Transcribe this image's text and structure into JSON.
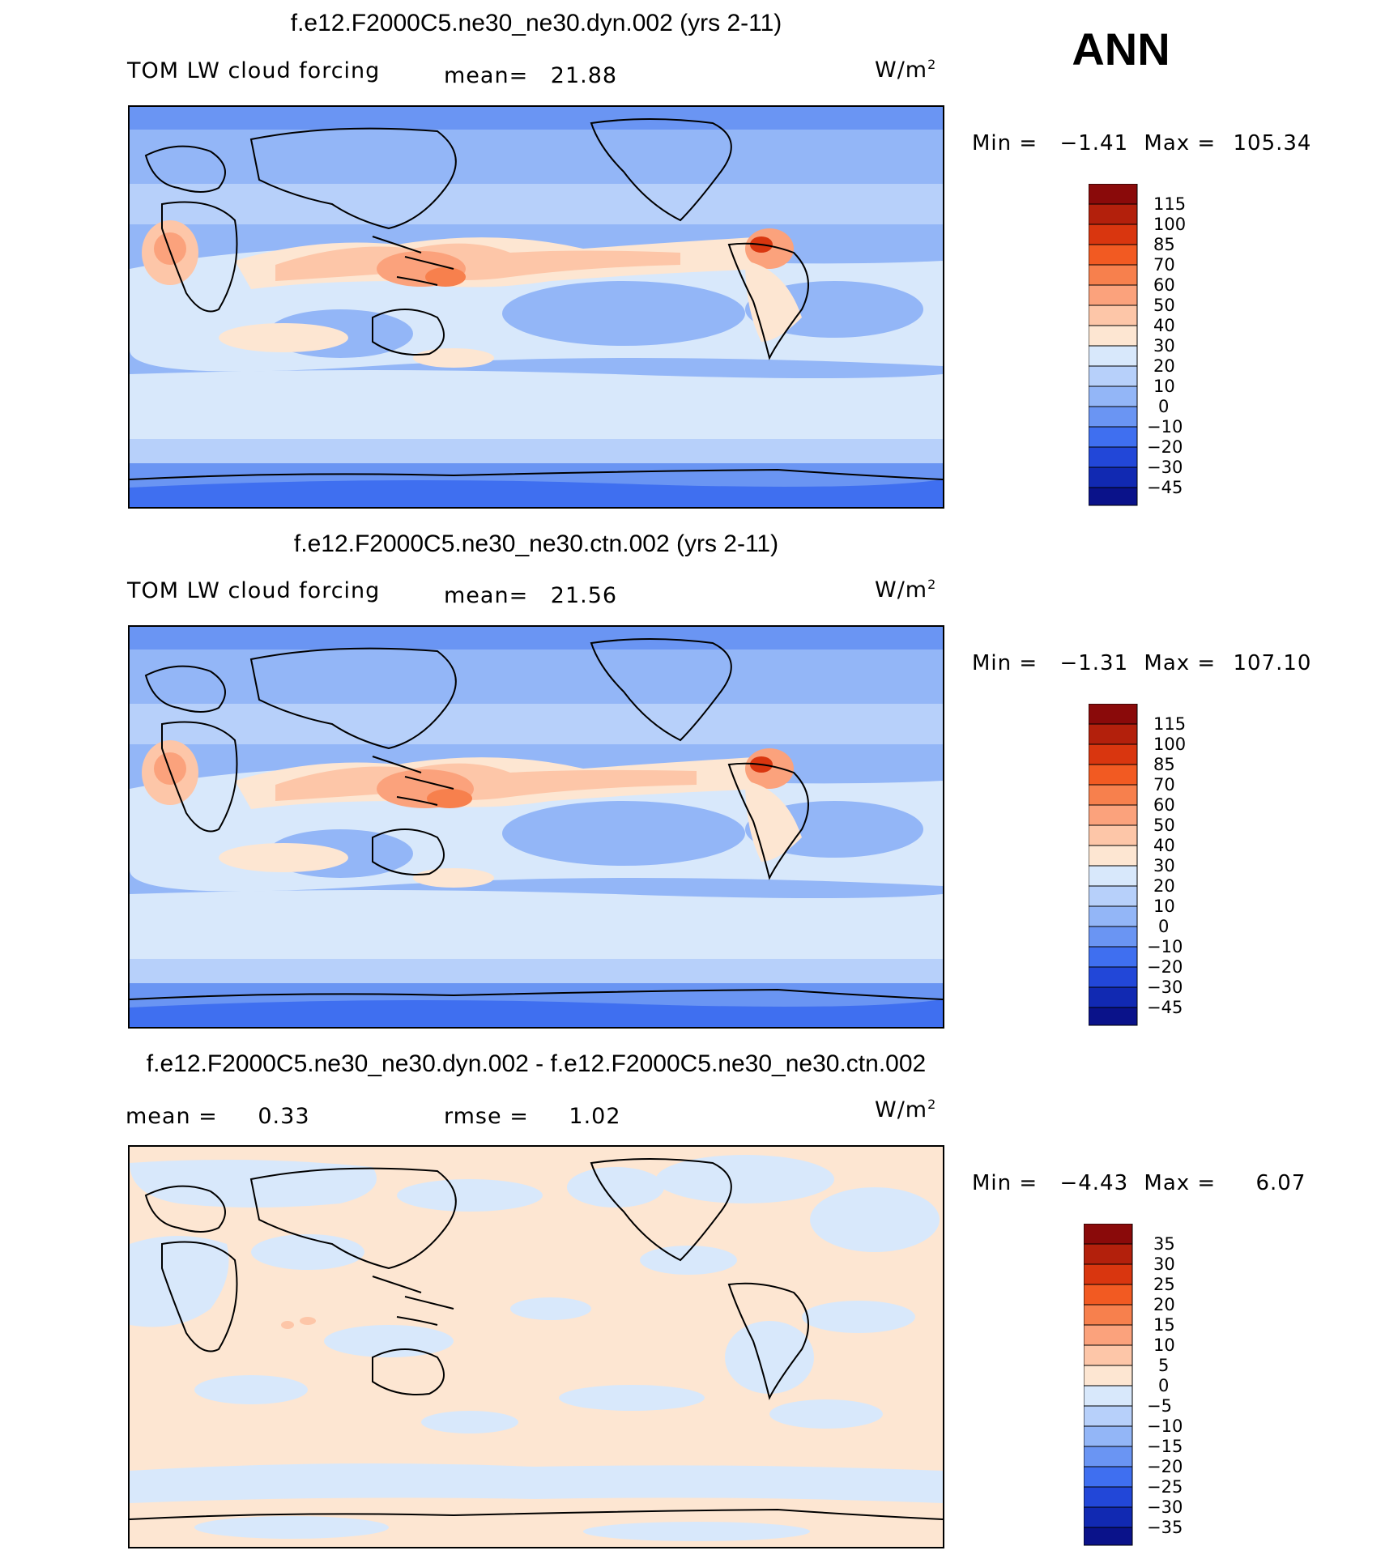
{
  "season_label": "ANN",
  "panels": [
    {
      "id": "dyn",
      "title": "f.e12.F2000C5.ne30_ne30.dyn.002 (yrs 2-11)",
      "left_label": "TOM LW cloud forcing",
      "mid_label": "mean=",
      "mid_value": "21.88",
      "unit": "W/m",
      "unit_sup": "2",
      "min_label": "Min =",
      "min_value": "−1.41",
      "max_label": "Max =",
      "max_value": "105.34",
      "colorbar": [
        "115",
        "100",
        "85",
        "70",
        "60",
        "50",
        "40",
        "30",
        "20",
        "10",
        "0",
        "−10",
        "−20",
        "−30",
        "−45"
      ]
    },
    {
      "id": "ctn",
      "title": "f.e12.F2000C5.ne30_ne30.ctn.002 (yrs 2-11)",
      "left_label": "TOM LW cloud forcing",
      "mid_label": "mean=",
      "mid_value": "21.56",
      "unit": "W/m",
      "unit_sup": "2",
      "min_label": "Min =",
      "min_value": "−1.31",
      "max_label": "Max =",
      "max_value": "107.10",
      "colorbar": [
        "115",
        "100",
        "85",
        "70",
        "60",
        "50",
        "40",
        "30",
        "20",
        "10",
        "0",
        "−10",
        "−20",
        "−30",
        "−45"
      ]
    },
    {
      "id": "diff",
      "title": "f.e12.F2000C5.ne30_ne30.dyn.002 - f.e12.F2000C5.ne30_ne30.ctn.002",
      "left_label": "mean =",
      "left_value": "0.33",
      "mid_label": "rmse =",
      "mid_value": "1.02",
      "unit": "W/m",
      "unit_sup": "2",
      "min_label": "Min =",
      "min_value": "−4.43",
      "max_label": "Max =",
      "max_value": "6.07",
      "colorbar": [
        "35",
        "30",
        "25",
        "20",
        "15",
        "10",
        "5",
        "0",
        "−5",
        "−10",
        "−15",
        "−20",
        "−25",
        "−30",
        "−35"
      ]
    }
  ],
  "colors": {
    "scale": [
      "#8a0a0a",
      "#b3200c",
      "#d9360f",
      "#f25a22",
      "#f7804d",
      "#fba27c",
      "#fdc6a8",
      "#fde6d2",
      "#d8e8fb",
      "#b7d0fa",
      "#93b6f7",
      "#6a95f3",
      "#3f6ff0",
      "#2247d8",
      "#1129b2",
      "#0a128a"
    ],
    "land_outline": "#000000"
  }
}
